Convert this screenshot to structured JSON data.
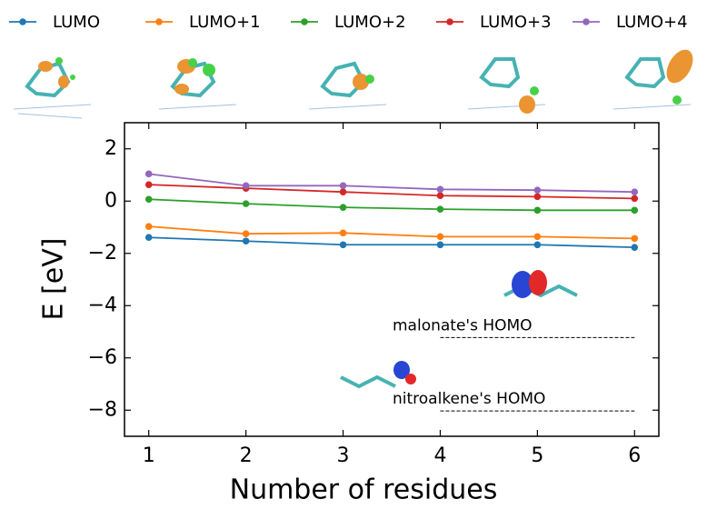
{
  "chart_data": {
    "type": "line",
    "xlabel": "Number of residues",
    "ylabel": "E [eV]",
    "x": [
      1,
      2,
      3,
      4,
      5,
      6
    ],
    "xlim": [
      0.75,
      6.25
    ],
    "xticks": [
      1,
      2,
      3,
      4,
      5,
      6
    ],
    "ylim": [
      -9,
      3
    ],
    "yticks": [
      {
        "value": -8,
        "label": "−8"
      },
      {
        "value": -6,
        "label": "−6"
      },
      {
        "value": -4,
        "label": "−4"
      },
      {
        "value": -2,
        "label": "−2"
      },
      0,
      2
    ],
    "series": [
      {
        "name": "LUMO",
        "color": "#1f77b4",
        "values": [
          -1.39,
          -1.53,
          -1.67,
          -1.67,
          -1.67,
          -1.77
        ]
      },
      {
        "name": "LUMO+1",
        "color": "#ff7f0e",
        "values": [
          -0.97,
          -1.25,
          -1.22,
          -1.36,
          -1.36,
          -1.43
        ]
      },
      {
        "name": "LUMO+2",
        "color": "#2ca02c",
        "values": [
          0.07,
          -0.1,
          -0.24,
          -0.31,
          -0.35,
          -0.35
        ]
      },
      {
        "name": "LUMO+3",
        "color": "#d62728",
        "values": [
          0.63,
          0.49,
          0.35,
          0.21,
          0.17,
          0.1
        ]
      },
      {
        "name": "LUMO+4",
        "color": "#9467bd",
        "values": [
          1.04,
          0.59,
          0.59,
          0.45,
          0.42,
          0.35
        ]
      }
    ],
    "reference_lines": [
      {
        "label": "malonate's HOMO",
        "y": -5.22,
        "x": [
          4,
          6
        ]
      },
      {
        "label": "nitroalkene's HOMO",
        "y": -8.03,
        "x": [
          4,
          6
        ]
      }
    ]
  }
}
